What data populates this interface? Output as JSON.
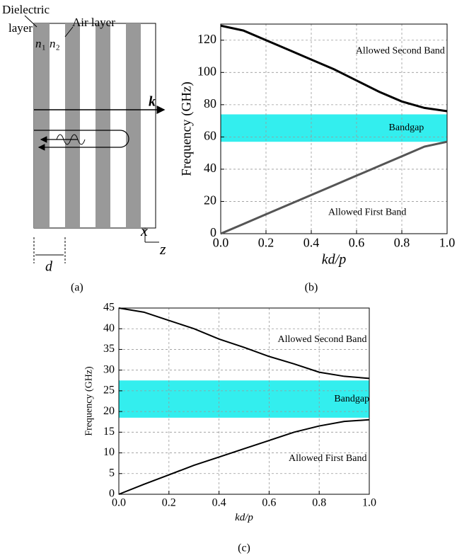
{
  "diagram": {
    "dielectric": "Dielectric",
    "layer": "layer",
    "air": "Air layer",
    "n_a": "n",
    "n_a_sub": "1",
    "n_b": "n",
    "n_b_sub": "2",
    "k": "k",
    "x": "x",
    "z": "z",
    "d": "d",
    "panel_label": "(a)"
  },
  "chart_data": [
    {
      "type": "line",
      "panel_label": "(b)",
      "ylabel": "Frequency (GHz)",
      "xlabel": "kd/p",
      "x": [
        0,
        0.1,
        0.2,
        0.3,
        0.4,
        0.5,
        0.6,
        0.7,
        0.8,
        0.9,
        1.0
      ],
      "series": [
        {
          "color": "#000000",
          "values": [
            129,
            126,
            120,
            114,
            108,
            102,
            95,
            88,
            82,
            78,
            76
          ]
        },
        {
          "color": "#555555",
          "values": [
            0,
            6,
            12,
            18,
            24,
            30,
            36,
            42,
            48,
            54,
            57
          ]
        }
      ],
      "bandgap": {
        "label": "Bandgap",
        "range": [
          57,
          74
        ],
        "color": "#33eeee"
      },
      "annotations": [
        "Allowed Second Band",
        "Allowed First Band"
      ],
      "xlim": [
        0,
        1.0
      ],
      "ylim": [
        0,
        130
      ],
      "xticks": [
        {
          "value": 0,
          "label": "0.0"
        },
        0.2,
        0.4,
        0.6,
        0.8,
        {
          "value": 1,
          "label": "1.0"
        }
      ],
      "yticks": [
        0,
        20,
        40,
        60,
        80,
        100,
        120
      ],
      "grid": true
    },
    {
      "type": "line",
      "panel_label": "(c)",
      "ylabel": "Frequency (GHz)",
      "xlabel": "kd/p",
      "x": [
        0,
        0.1,
        0.2,
        0.3,
        0.4,
        0.5,
        0.6,
        0.7,
        0.8,
        0.9,
        1.0
      ],
      "series": [
        {
          "color": "#000000",
          "values": [
            45,
            44,
            42,
            40,
            37.5,
            35.5,
            33.3,
            31.5,
            29.5,
            28.5,
            28
          ]
        },
        {
          "color": "#000000",
          "values": [
            0,
            2.4,
            4.7,
            7,
            9,
            11,
            13,
            15,
            16.5,
            17.6,
            18
          ]
        }
      ],
      "bandgap": {
        "label": "Bandgap",
        "range": [
          18.5,
          27.5
        ],
        "color": "#33eeee"
      },
      "annotations": [
        "Allowed Second Band",
        "Allowed First Band"
      ],
      "xlim": [
        0,
        1.0
      ],
      "ylim": [
        0,
        45
      ],
      "xticks": [
        {
          "value": 0,
          "label": "0.0"
        },
        0.2,
        0.4,
        0.6,
        0.8,
        {
          "value": 1,
          "label": "1.0"
        }
      ],
      "yticks": [
        0,
        5,
        10,
        15,
        20,
        25,
        30,
        35,
        40,
        45
      ],
      "grid": true
    }
  ]
}
